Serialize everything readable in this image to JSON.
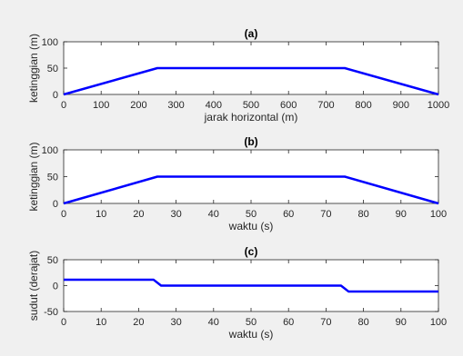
{
  "chart_data": [
    {
      "type": "line",
      "title": "(a)",
      "xlabel": "jarak horizontal (m)",
      "ylabel": "ketinggian (m)",
      "xlim": [
        0,
        1000
      ],
      "ylim": [
        0,
        100
      ],
      "xticks": [
        0,
        100,
        200,
        300,
        400,
        500,
        600,
        700,
        800,
        900,
        1000
      ],
      "yticks": [
        0,
        50,
        100
      ],
      "grid": false,
      "color": "#0000ff",
      "x": [
        0,
        250,
        750,
        1000
      ],
      "y": [
        0,
        50,
        50,
        0
      ]
    },
    {
      "type": "line",
      "title": "(b)",
      "xlabel": "waktu (s)",
      "ylabel": "ketinggian (m)",
      "xlim": [
        0,
        100
      ],
      "ylim": [
        0,
        100
      ],
      "xticks": [
        0,
        10,
        20,
        30,
        40,
        50,
        60,
        70,
        80,
        90,
        100
      ],
      "yticks": [
        0,
        50,
        100
      ],
      "grid": false,
      "color": "#0000ff",
      "x": [
        0,
        25,
        75,
        100
      ],
      "y": [
        0,
        50,
        50,
        0
      ]
    },
    {
      "type": "line",
      "title": "(c)",
      "xlabel": "waktu (s)",
      "ylabel": "sudut (derajat)",
      "xlim": [
        0,
        100
      ],
      "ylim": [
        -50,
        50
      ],
      "xticks": [
        0,
        10,
        20,
        30,
        40,
        50,
        60,
        70,
        80,
        90,
        100
      ],
      "yticks": [
        -50,
        0,
        50
      ],
      "grid": false,
      "color": "#0000ff",
      "x": [
        0,
        24,
        26,
        74,
        76,
        100
      ],
      "y": [
        11.3,
        11.3,
        0,
        0,
        -11.3,
        -11.3
      ]
    }
  ]
}
